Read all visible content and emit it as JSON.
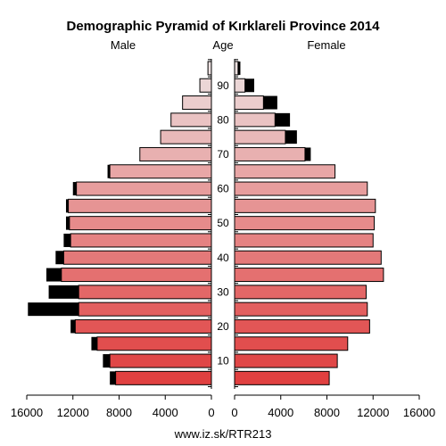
{
  "chart_data": {
    "type": "bar",
    "title": "Demographic Pyramid of Kırklareli Province 2014",
    "left_label": "Male",
    "center_label": "Age",
    "right_label": "Female",
    "footer": "www.iz.sk/RTR213",
    "x_ticks": [
      "16000",
      "12000",
      "8000",
      "4000",
      "0",
      "0",
      "4000",
      "8000",
      "12000",
      "16000"
    ],
    "x_tick_values": [
      16000,
      12000,
      8000,
      4000,
      0,
      0,
      4000,
      8000,
      12000,
      16000
    ],
    "age_ticks": [
      "10",
      "20",
      "30",
      "40",
      "50",
      "60",
      "70",
      "80",
      "90"
    ],
    "xlim": [
      0,
      16000
    ],
    "age_groups": [
      "0-4",
      "5-9",
      "10-14",
      "15-19",
      "20-24",
      "25-29",
      "30-34",
      "35-39",
      "40-44",
      "45-49",
      "50-54",
      "55-59",
      "60-64",
      "65-69",
      "70-74",
      "75-79",
      "80-84",
      "85-89",
      "90+"
    ],
    "series": [
      {
        "name": "Male",
        "base": [
          8300,
          8800,
          9900,
          11800,
          11500,
          11500,
          13000,
          12800,
          12200,
          12300,
          12400,
          11700,
          8800,
          6200,
          4400,
          3500,
          2500,
          1000,
          300
        ],
        "total": [
          8800,
          9400,
          10400,
          12200,
          15900,
          14100,
          14300,
          13500,
          12800,
          12600,
          12600,
          12000,
          9000,
          6200,
          4400,
          3500,
          2500,
          1000,
          300
        ]
      },
      {
        "name": "Female",
        "base": [
          8200,
          8900,
          9800,
          11700,
          11500,
          11400,
          12900,
          12700,
          12000,
          12100,
          12200,
          11500,
          8700,
          6100,
          4400,
          3500,
          2500,
          900,
          300
        ],
        "total": [
          8200,
          8900,
          9800,
          11700,
          11500,
          11400,
          12900,
          12700,
          12000,
          12100,
          12200,
          11500,
          8700,
          6600,
          5400,
          4800,
          3700,
          1700,
          500
        ]
      }
    ],
    "colors": {
      "excess": "#000000",
      "bar_stroke": "#000000",
      "young": "#e04040",
      "old": "#ece0e0"
    }
  }
}
